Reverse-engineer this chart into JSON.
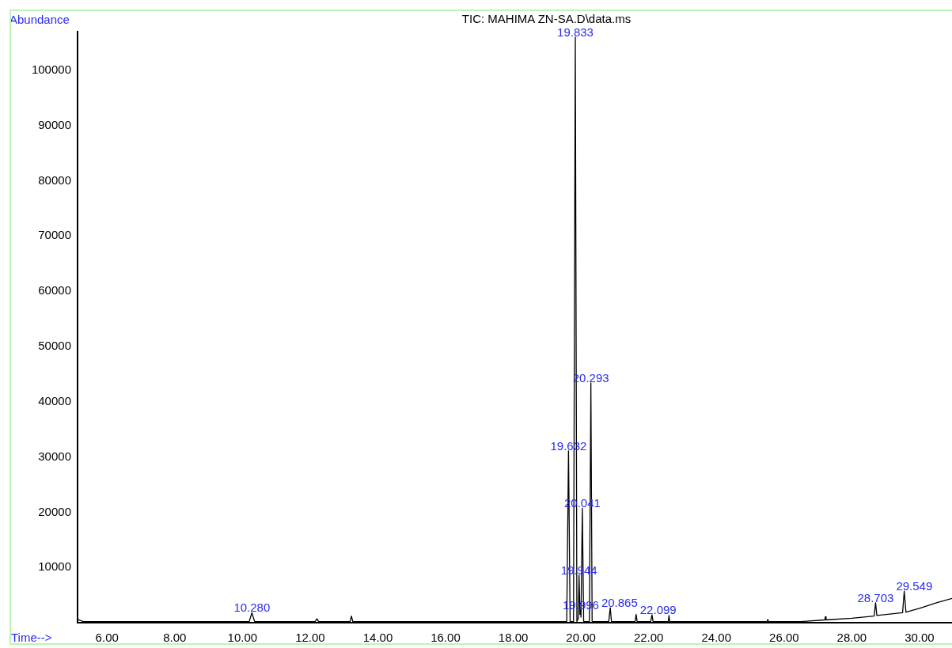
{
  "chart_data": {
    "type": "line",
    "title": "TIC: MAHIMA ZN-SA.D\\data.ms",
    "xlabel": "Time-->",
    "ylabel": "Abundance",
    "xlim": [
      5.13,
      30.96
    ],
    "ylim": [
      0,
      107000
    ],
    "xticks": [
      {
        "value": 6,
        "label": "6.00"
      },
      {
        "value": 8,
        "label": "8.00"
      },
      {
        "value": 10,
        "label": "10.00"
      },
      {
        "value": 12,
        "label": "12.00"
      },
      {
        "value": 14,
        "label": "14.00"
      },
      {
        "value": 16,
        "label": "16.00"
      },
      {
        "value": 18,
        "label": "18.00"
      },
      {
        "value": 20,
        "label": "20.00"
      },
      {
        "value": 22,
        "label": "22.00"
      },
      {
        "value": 24,
        "label": "24.00"
      },
      {
        "value": 26,
        "label": "26.00"
      },
      {
        "value": 28,
        "label": "28.00"
      },
      {
        "value": 30,
        "label": "30.00"
      }
    ],
    "yticks": [
      10000,
      20000,
      30000,
      40000,
      50000,
      60000,
      70000,
      80000,
      90000,
      100000
    ],
    "marker": "none",
    "series": [
      {
        "color": "#000000",
        "x": [
          5.13,
          5.3,
          10.2,
          10.28,
          10.36,
          12.15,
          12.2,
          12.25,
          13.18,
          13.22,
          13.26,
          19.58,
          19.632,
          19.68,
          19.78,
          19.833,
          19.88,
          19.92,
          19.944,
          19.97,
          19.996,
          20.0,
          20.041,
          20.08,
          20.25,
          20.293,
          20.33,
          20.82,
          20.865,
          20.9,
          21.6,
          21.63,
          21.66,
          22.06,
          22.099,
          22.13,
          22.58,
          22.6,
          22.62,
          25.5,
          25.52,
          25.54,
          26.5,
          27.2,
          27.22,
          27.24,
          28.0,
          28.66,
          28.703,
          28.74,
          29.5,
          29.549,
          29.6,
          30.0,
          30.5,
          30.96
        ],
        "values": [
          600,
          200,
          200,
          1800,
          200,
          200,
          700,
          200,
          200,
          1200,
          200,
          200,
          31100,
          200,
          200,
          106000,
          200,
          800,
          8600,
          1500,
          2300,
          1000,
          20700,
          200,
          200,
          43400,
          200,
          200,
          2700,
          200,
          200,
          1500,
          200,
          200,
          1400,
          200,
          200,
          1300,
          200,
          200,
          600,
          200,
          200,
          500,
          1100,
          500,
          800,
          1200,
          3600,
          1300,
          1800,
          5700,
          1900,
          2600,
          3600,
          4400
        ]
      }
    ],
    "annotations": [
      {
        "text": "10.280",
        "x": 10.28,
        "y": 1800
      },
      {
        "text": "19.632",
        "x": 19.632,
        "y": 31100
      },
      {
        "text": "19.833",
        "x": 19.833,
        "y": 106000
      },
      {
        "text": "19.944",
        "x": 19.944,
        "y": 8600
      },
      {
        "text": "19.996",
        "x": 19.996,
        "y": 2300
      },
      {
        "text": "20.041",
        "x": 20.041,
        "y": 20700
      },
      {
        "text": "20.293",
        "x": 20.293,
        "y": 43400
      },
      {
        "text": "20.865",
        "x": 20.865,
        "y": 2700
      },
      {
        "text": "22.099",
        "x": 22.099,
        "y": 1400
      },
      {
        "text": "28.703",
        "x": 28.703,
        "y": 3600
      },
      {
        "text": "29.549",
        "x": 29.549,
        "y": 5700
      }
    ]
  }
}
